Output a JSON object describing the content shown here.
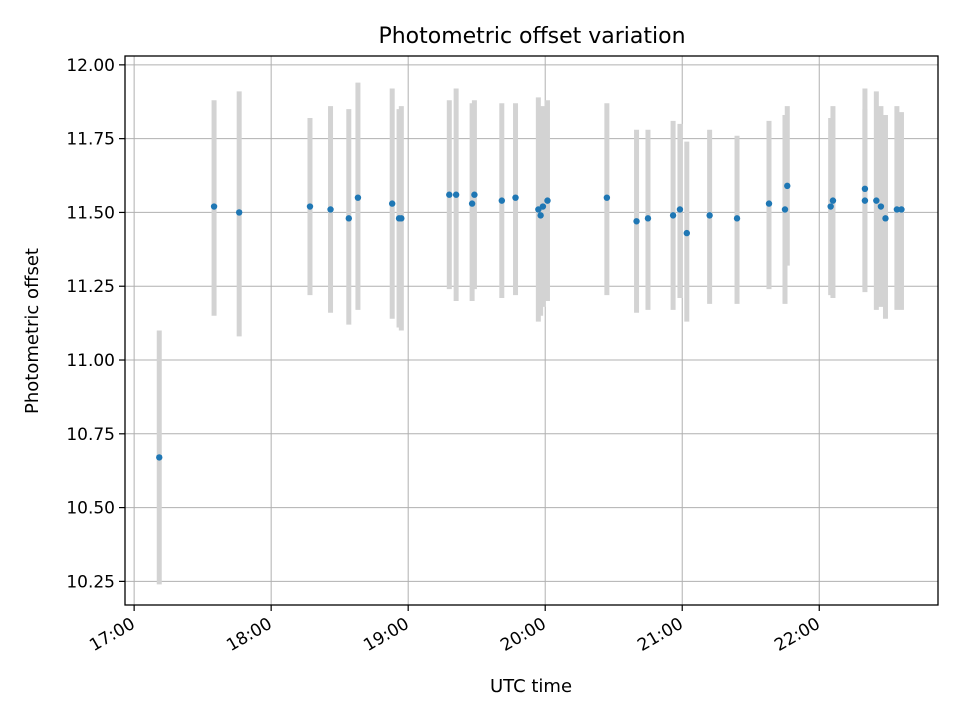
{
  "chart_data": {
    "type": "scatter",
    "title": "Photometric offset variation",
    "xlabel": "UTC time",
    "ylabel": "Photometric offset",
    "x_axis_type": "time",
    "xlim": [
      "16:56",
      "22:52"
    ],
    "ylim": [
      10.17,
      12.03
    ],
    "x_ticks": [
      "17:00",
      "18:00",
      "19:00",
      "20:00",
      "21:00",
      "22:00"
    ],
    "y_ticks": [
      "10.25",
      "10.50",
      "10.75",
      "11.00",
      "11.25",
      "11.50",
      "11.75",
      "12.00"
    ],
    "grid": true,
    "colors": {
      "points": "#1f77b4",
      "errorbars": "#d3d3d3",
      "grid": "#b0b0b0"
    },
    "points": [
      {
        "x": "17:11",
        "y": 10.67,
        "err_low": 10.24,
        "err_high": 11.1
      },
      {
        "x": "17:35",
        "y": 11.52,
        "err_low": 11.15,
        "err_high": 11.88
      },
      {
        "x": "17:46",
        "y": 11.5,
        "err_low": 11.08,
        "err_high": 11.91
      },
      {
        "x": "18:17",
        "y": 11.52,
        "err_low": 11.22,
        "err_high": 11.82
      },
      {
        "x": "18:26",
        "y": 11.51,
        "err_low": 11.16,
        "err_high": 11.86
      },
      {
        "x": "18:34",
        "y": 11.48,
        "err_low": 11.12,
        "err_high": 11.85
      },
      {
        "x": "18:38",
        "y": 11.55,
        "err_low": 11.17,
        "err_high": 11.94
      },
      {
        "x": "18:53",
        "y": 11.53,
        "err_low": 11.14,
        "err_high": 11.92
      },
      {
        "x": "18:56",
        "y": 11.48,
        "err_low": 11.11,
        "err_high": 11.85
      },
      {
        "x": "18:57",
        "y": 11.48,
        "err_low": 11.1,
        "err_high": 11.86
      },
      {
        "x": "19:18",
        "y": 11.56,
        "err_low": 11.24,
        "err_high": 11.88
      },
      {
        "x": "19:21",
        "y": 11.56,
        "err_low": 11.2,
        "err_high": 11.92
      },
      {
        "x": "19:28",
        "y": 11.53,
        "err_low": 11.2,
        "err_high": 11.87
      },
      {
        "x": "19:29",
        "y": 11.56,
        "err_low": 11.24,
        "err_high": 11.88
      },
      {
        "x": "19:41",
        "y": 11.54,
        "err_low": 11.21,
        "err_high": 11.87
      },
      {
        "x": "19:47",
        "y": 11.55,
        "err_low": 11.22,
        "err_high": 11.87
      },
      {
        "x": "19:57",
        "y": 11.51,
        "err_low": 11.13,
        "err_high": 11.89
      },
      {
        "x": "19:58",
        "y": 11.49,
        "err_low": 11.15,
        "err_high": 11.85
      },
      {
        "x": "19:59",
        "y": 11.52,
        "err_low": 11.18,
        "err_high": 11.86
      },
      {
        "x": "20:01",
        "y": 11.54,
        "err_low": 11.2,
        "err_high": 11.88
      },
      {
        "x": "20:27",
        "y": 11.55,
        "err_low": 11.22,
        "err_high": 11.87
      },
      {
        "x": "20:40",
        "y": 11.47,
        "err_low": 11.16,
        "err_high": 11.78
      },
      {
        "x": "20:45",
        "y": 11.48,
        "err_low": 11.17,
        "err_high": 11.78
      },
      {
        "x": "20:56",
        "y": 11.49,
        "err_low": 11.17,
        "err_high": 11.81
      },
      {
        "x": "20:59",
        "y": 11.51,
        "err_low": 11.21,
        "err_high": 11.8
      },
      {
        "x": "21:02",
        "y": 11.43,
        "err_low": 11.13,
        "err_high": 11.74
      },
      {
        "x": "21:12",
        "y": 11.49,
        "err_low": 11.19,
        "err_high": 11.78
      },
      {
        "x": "21:24",
        "y": 11.48,
        "err_low": 11.19,
        "err_high": 11.76
      },
      {
        "x": "21:38",
        "y": 11.53,
        "err_low": 11.24,
        "err_high": 11.81
      },
      {
        "x": "21:45",
        "y": 11.51,
        "err_low": 11.19,
        "err_high": 11.83
      },
      {
        "x": "21:46",
        "y": 11.59,
        "err_low": 11.32,
        "err_high": 11.86
      },
      {
        "x": "22:05",
        "y": 11.52,
        "err_low": 11.22,
        "err_high": 11.82
      },
      {
        "x": "22:06",
        "y": 11.54,
        "err_low": 11.21,
        "err_high": 11.86
      },
      {
        "x": "22:20",
        "y": 11.58,
        "err_low": 11.23,
        "err_high": 11.92
      },
      {
        "x": "22:20",
        "y": 11.54,
        "err_low": 11.24,
        "err_high": 11.85
      },
      {
        "x": "22:25",
        "y": 11.54,
        "err_low": 11.17,
        "err_high": 11.91
      },
      {
        "x": "22:27",
        "y": 11.52,
        "err_low": 11.18,
        "err_high": 11.86
      },
      {
        "x": "22:29",
        "y": 11.48,
        "err_low": 11.14,
        "err_high": 11.83
      },
      {
        "x": "22:34",
        "y": 11.51,
        "err_low": 11.17,
        "err_high": 11.86
      },
      {
        "x": "22:36",
        "y": 11.51,
        "err_low": 11.17,
        "err_high": 11.84
      }
    ]
  }
}
